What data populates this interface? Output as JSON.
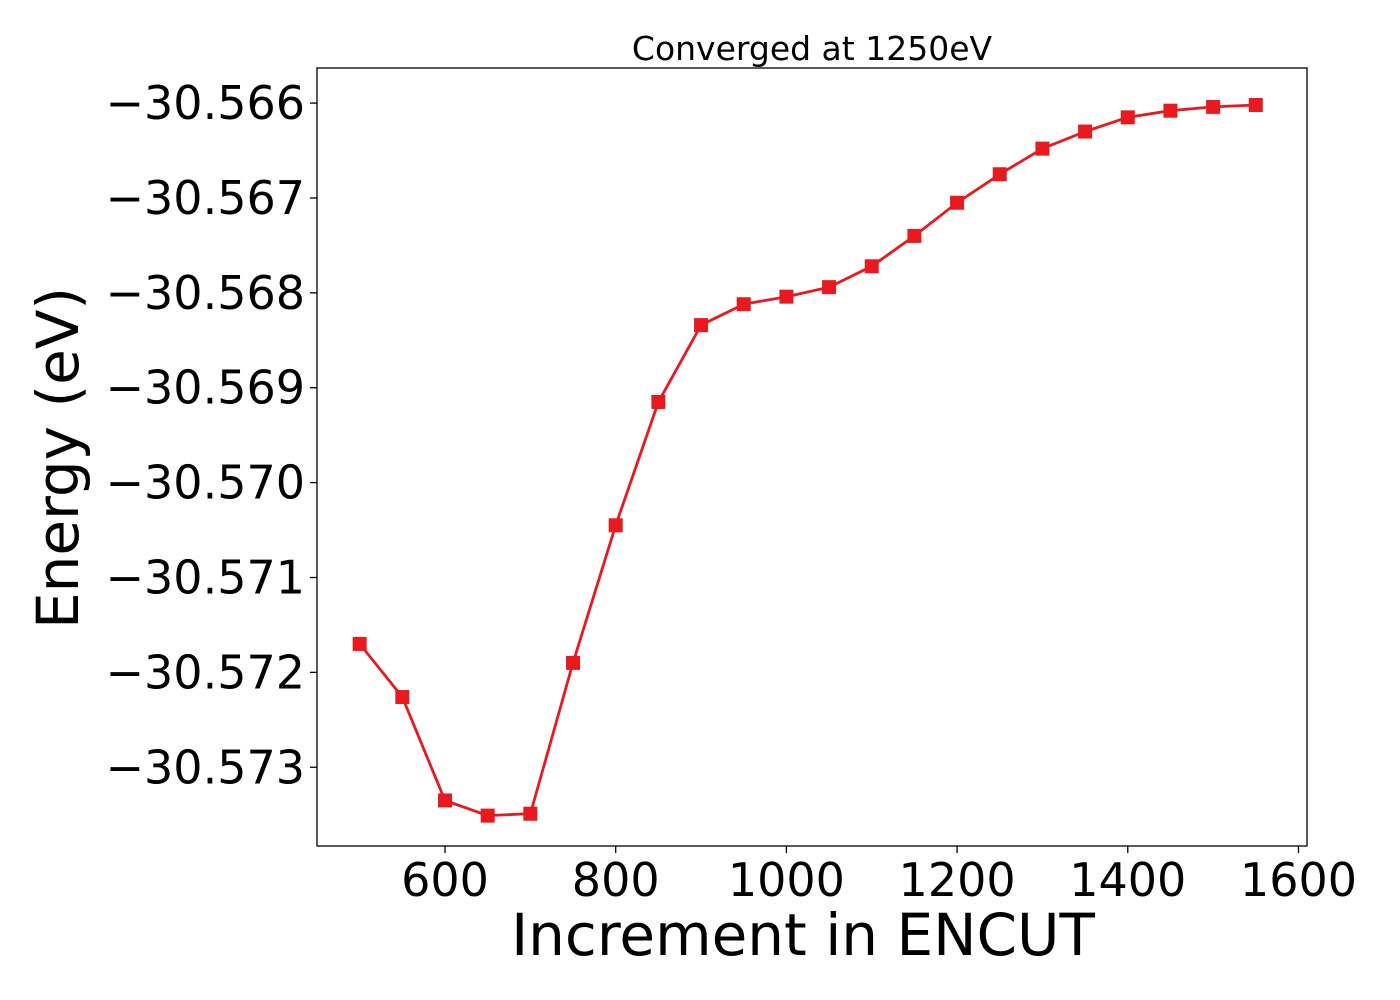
{
  "chart_data": {
    "type": "line",
    "title": "Converged at 1250eV",
    "xlabel": "Increment in ENCUT",
    "ylabel": "Energy (eV)",
    "xlim": [
      450,
      1610
    ],
    "ylim": [
      -30.57383,
      -30.56563
    ],
    "x_ticks": [
      600,
      800,
      1000,
      1200,
      1400,
      1600
    ],
    "x_tick_labels": [
      "600",
      "800",
      "1000",
      "1200",
      "1400",
      "1600"
    ],
    "y_ticks": [
      -30.566,
      -30.567,
      -30.568,
      -30.569,
      -30.57,
      -30.571,
      -30.572,
      -30.573
    ],
    "y_tick_labels": [
      "−30.566",
      "−30.567",
      "−30.568",
      "−30.569",
      "−30.570",
      "−30.571",
      "−30.572",
      "−30.573"
    ],
    "grid": false,
    "series": [
      {
        "color": "#e8191f",
        "marker": "square",
        "x": [
          500,
          550,
          600,
          650,
          700,
          750,
          800,
          850,
          900,
          950,
          1000,
          1050,
          1100,
          1150,
          1200,
          1250,
          1300,
          1350,
          1400,
          1450,
          1500,
          1550
        ],
        "y": [
          -30.5717,
          -30.57226,
          -30.57335,
          -30.57351,
          -30.57349,
          -30.5719,
          -30.57045,
          -30.56915,
          -30.56834,
          -30.56812,
          -30.56804,
          -30.56794,
          -30.56772,
          -30.5674,
          -30.56705,
          -30.56675,
          -30.56648,
          -30.5663,
          -30.56615,
          -30.56608,
          -30.56604,
          -30.56602
        ]
      }
    ]
  }
}
